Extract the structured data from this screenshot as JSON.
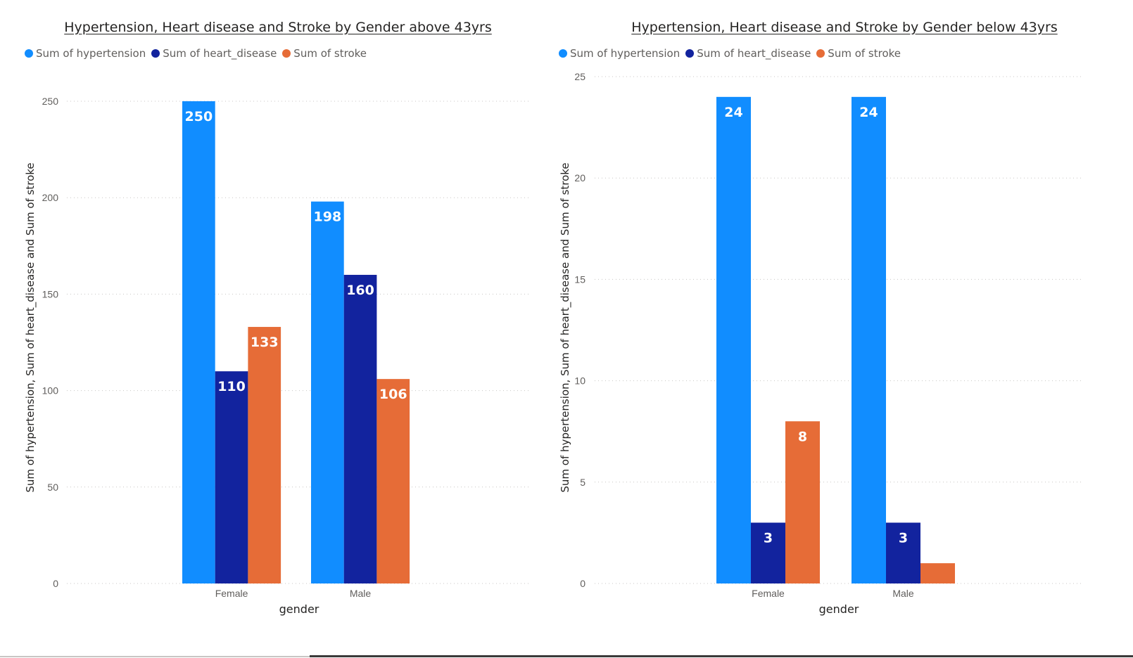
{
  "colors": {
    "hypertension": "#118DFF",
    "heart_disease": "#12239E",
    "stroke": "#E66C37",
    "grid": "#c8c6c4",
    "axis_text": "#605e5c",
    "title_text": "#252423"
  },
  "chart_data": [
    {
      "type": "bar",
      "title": "Hypertension, Heart disease and Stroke by Gender above 43yrs",
      "xlabel": "gender",
      "ylabel": "Sum of hypertension, Sum of heart_disease and Sum of stroke",
      "categories": [
        "Female",
        "Male"
      ],
      "series": [
        {
          "name": "Sum of hypertension",
          "values": [
            250,
            198
          ],
          "labels": [
            "250",
            "198"
          ]
        },
        {
          "name": "Sum of heart_disease",
          "values": [
            110,
            160
          ],
          "labels": [
            "110",
            "160"
          ]
        },
        {
          "name": "Sum of stroke",
          "values": [
            133,
            106
          ],
          "labels": [
            "133",
            "106"
          ]
        }
      ],
      "yticks": [
        0,
        50,
        100,
        150,
        200,
        250
      ],
      "ylim": [
        0,
        250
      ],
      "grid": true,
      "legend_position": "top-left"
    },
    {
      "type": "bar",
      "title": "Hypertension, Heart disease and Stroke by Gender below 43yrs",
      "xlabel": "gender",
      "ylabel": "Sum of hypertension, Sum of heart_disease and Sum of stroke",
      "categories": [
        "Female",
        "Male"
      ],
      "series": [
        {
          "name": "Sum of hypertension",
          "values": [
            24,
            24
          ],
          "labels": [
            "24",
            "24"
          ]
        },
        {
          "name": "Sum of heart_disease",
          "values": [
            3,
            3
          ],
          "labels": [
            "3",
            "3"
          ]
        },
        {
          "name": "Sum of stroke",
          "values": [
            8,
            1
          ],
          "labels": [
            "8",
            ""
          ]
        }
      ],
      "yticks": [
        0,
        5,
        10,
        15,
        20,
        25
      ],
      "ylim": [
        0,
        25
      ],
      "grid": true,
      "legend_position": "top-left"
    }
  ]
}
